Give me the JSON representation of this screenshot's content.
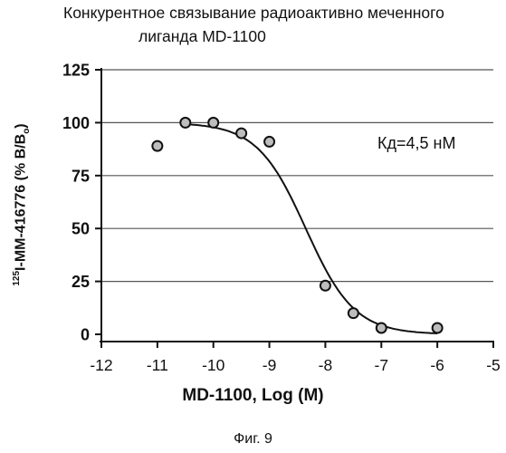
{
  "chart_data": {
    "type": "scatter",
    "title_line1": "Конкурентное связывание радиоактивно меченного",
    "title_line2": "лиганда MD-1100",
    "xlabel": "MD-1100, Log (M)",
    "ylabel_pre": "125",
    "ylabel_main": "I-MM-416776 (% B/B",
    "ylabel_sub": "o",
    "ylabel_post": ")",
    "xlim": [
      -12,
      -5
    ],
    "ylim": [
      0,
      125
    ],
    "xticks": [
      -12,
      -11,
      -10,
      -9,
      -8,
      -7,
      -6,
      -5
    ],
    "yticks": [
      0,
      25,
      50,
      75,
      100,
      125
    ],
    "grid": "horizontal",
    "points": [
      {
        "x": -11,
        "y": 89
      },
      {
        "x": -10.5,
        "y": 100
      },
      {
        "x": -10,
        "y": 100
      },
      {
        "x": -9.5,
        "y": 95
      },
      {
        "x": -9,
        "y": 91
      },
      {
        "x": -8,
        "y": 23
      },
      {
        "x": -7.5,
        "y": 10
      },
      {
        "x": -7,
        "y": 3
      },
      {
        "x": -6,
        "y": 3
      }
    ],
    "fit_curve": {
      "top": 100,
      "bottom": 0,
      "log_ic50": -8.35,
      "hill": -1,
      "x_range": [
        -10.5,
        -6
      ]
    },
    "annotation": "Кд=4,5 нМ",
    "caption": "Фиг. 9"
  }
}
